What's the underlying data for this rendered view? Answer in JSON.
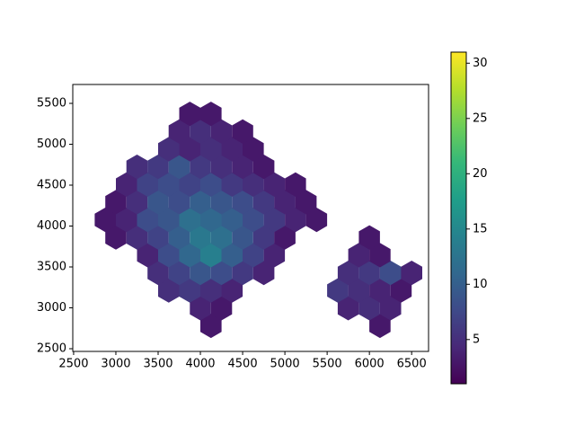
{
  "chart_data": {
    "type": "hexbin",
    "colormap": "viridis",
    "x": [
      4125,
      4000,
      4250,
      3625,
      3875,
      4125,
      4375,
      3500,
      3750,
      4000,
      4250,
      4500,
      4750,
      3375,
      3625,
      3875,
      4125,
      4375,
      4625,
      4875,
      3000,
      3250,
      3500,
      3750,
      4000,
      4250,
      4500,
      4750,
      5000,
      2875,
      3125,
      3375,
      3625,
      3875,
      4125,
      4375,
      4625,
      4875,
      5125,
      5375,
      3000,
      3250,
      3500,
      3750,
      4000,
      4250,
      4500,
      4750,
      5000,
      5250,
      3125,
      3375,
      3625,
      3875,
      4125,
      4375,
      4625,
      4875,
      5125,
      3250,
      3500,
      3750,
      4000,
      4250,
      4500,
      4750,
      3625,
      3875,
      4125,
      4375,
      4625,
      3750,
      4000,
      4250,
      4500,
      3875,
      4125,
      6125,
      5750,
      6000,
      6250,
      5625,
      5875,
      6125,
      6375,
      5750,
      6000,
      6250,
      6500,
      5875,
      6125,
      6000
    ],
    "y": [
      2780,
      2996,
      2996,
      3212,
      3212,
      3212,
      3212,
      3428,
      3428,
      3428,
      3428,
      3428,
      3428,
      3644,
      3644,
      3644,
      3644,
      3644,
      3644,
      3644,
      3860,
      3860,
      3860,
      3860,
      3860,
      3860,
      3860,
      3860,
      3860,
      4076,
      4076,
      4076,
      4076,
      4076,
      4076,
      4076,
      4076,
      4076,
      4076,
      4076,
      4292,
      4292,
      4292,
      4292,
      4292,
      4292,
      4292,
      4292,
      4292,
      4292,
      4508,
      4508,
      4508,
      4508,
      4508,
      4508,
      4508,
      4508,
      4508,
      4724,
      4724,
      4724,
      4724,
      4724,
      4724,
      4724,
      4940,
      4940,
      4940,
      4940,
      4940,
      5156,
      5156,
      5156,
      5156,
      5372,
      5372,
      2780,
      2996,
      2996,
      2996,
      3212,
      3212,
      3212,
      3212,
      3428,
      3428,
      3428,
      3428,
      3644,
      3644,
      3860
    ],
    "values": [
      3,
      4,
      3,
      5,
      6,
      5,
      4,
      5,
      7,
      9,
      8,
      6,
      4,
      4,
      8,
      11,
      14,
      10,
      7,
      4,
      3,
      5,
      7,
      10,
      13,
      12,
      9,
      6,
      3,
      3,
      4,
      8,
      9,
      12,
      11,
      10,
      8,
      6,
      4,
      3,
      3,
      5,
      9,
      8,
      10,
      9,
      8,
      6,
      4,
      3,
      4,
      7,
      8,
      7,
      8,
      6,
      5,
      4,
      3,
      5,
      6,
      9,
      6,
      5,
      4,
      3,
      5,
      4,
      5,
      4,
      3,
      4,
      5,
      4,
      3,
      3,
      3,
      3,
      4,
      5,
      4,
      6,
      5,
      4,
      3,
      5,
      6,
      8,
      4,
      4,
      3,
      3
    ],
    "xlim": [
      2490,
      6700
    ],
    "ylim": [
      2467,
      5731
    ],
    "xticks": [
      2500,
      3000,
      3500,
      4000,
      4500,
      5000,
      5500,
      6000,
      6500
    ],
    "yticks": [
      2500,
      3000,
      3500,
      4000,
      4500,
      5000,
      5500
    ],
    "clim": [
      1,
      31
    ],
    "cticks": [
      5,
      10,
      15,
      20,
      25,
      30
    ]
  }
}
